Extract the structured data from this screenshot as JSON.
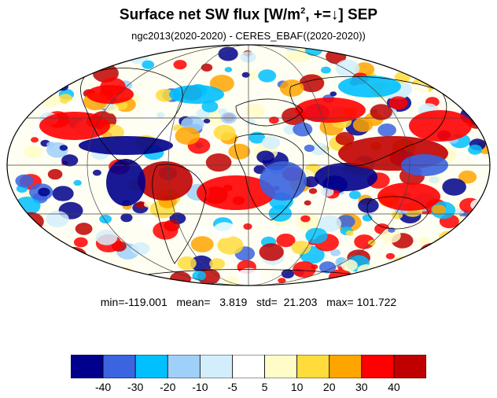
{
  "title": {
    "main": "Surface net SW flux [W/m",
    "sup": "2",
    "rest": ", +=↓]  SEP"
  },
  "subtitle": "ngc2013(2020-2020) - CERES_EBAF((2020-2020))",
  "stats": {
    "text": "min=-119.001   mean=   3.819   std=  21.203   max= 101.722"
  },
  "colorbar": {
    "colors": [
      "#00008c",
      "#3a64e0",
      "#00c0ff",
      "#9fd0fa",
      "#d2eefc",
      "#ffffff",
      "#fffcc8",
      "#ffdc3c",
      "#ffa500",
      "#ff0000",
      "#c00000"
    ],
    "labels": [
      "-40",
      "-30",
      "-20",
      "-10",
      "-5",
      "5",
      "10",
      "20",
      "30",
      "40"
    ]
  }
}
